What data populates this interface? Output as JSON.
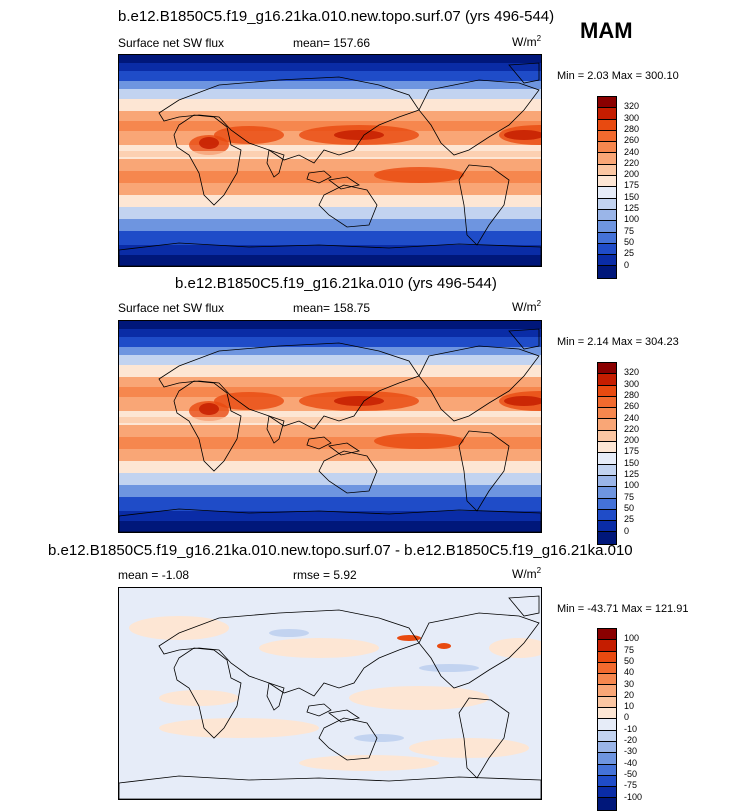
{
  "season": "MAM",
  "panels": [
    {
      "title": "b.e12.B1850C5.f19_g16.21ka.010.new.topo.surf.07 (yrs 496-544)",
      "variable": "Surface net SW flux",
      "stat1": "mean=  157.66",
      "stat2": "",
      "units": "W/m",
      "units_exp": "2",
      "minmax": "Min =   2.03 Max = 300.10",
      "colorbar": {
        "labels": [
          "320",
          "300",
          "280",
          "260",
          "240",
          "220",
          "200",
          "175",
          "150",
          "125",
          "100",
          "75",
          "50",
          "25",
          "0"
        ],
        "colors": [
          "#8a0000",
          "#c51d00",
          "#e84a10",
          "#f26a2e",
          "#f6874e",
          "#f9a676",
          "#fbc6a2",
          "#fde6d4",
          "#e6ecf8",
          "#c2d3f0",
          "#9ab5e8",
          "#6e95e0",
          "#4472d8",
          "#1f4cc8",
          "#0a2ca6",
          "#00177a"
        ]
      },
      "type": "mean"
    },
    {
      "title": "b.e12.B1850C5.f19_g16.21ka.010 (yrs 496-544)",
      "variable": "Surface net SW flux",
      "stat1": "mean=  158.75",
      "stat2": "",
      "units": "W/m",
      "units_exp": "2",
      "minmax": "Min =   2.14 Max = 304.23",
      "colorbar": {
        "labels": [
          "320",
          "300",
          "280",
          "260",
          "240",
          "220",
          "200",
          "175",
          "150",
          "125",
          "100",
          "75",
          "50",
          "25",
          "0"
        ],
        "colors": [
          "#8a0000",
          "#c51d00",
          "#e84a10",
          "#f26a2e",
          "#f6874e",
          "#f9a676",
          "#fbc6a2",
          "#fde6d4",
          "#e6ecf8",
          "#c2d3f0",
          "#9ab5e8",
          "#6e95e0",
          "#4472d8",
          "#1f4cc8",
          "#0a2ca6",
          "#00177a"
        ]
      },
      "type": "mean"
    },
    {
      "title": "b.e12.B1850C5.f19_g16.21ka.010.new.topo.surf.07 - b.e12.B1850C5.f19_g16.21ka.010",
      "variable": "",
      "stat1": "mean =  -1.08",
      "stat2": "rmse =   5.92",
      "units": "W/m",
      "units_exp": "2",
      "minmax": "Min = -43.71 Max = 121.91",
      "colorbar": {
        "labels": [
          "100",
          "75",
          "50",
          "40",
          "30",
          "20",
          "10",
          "0",
          "-10",
          "-20",
          "-30",
          "-40",
          "-50",
          "-75",
          "-100"
        ],
        "colors": [
          "#8a0000",
          "#c51d00",
          "#e84a10",
          "#f26a2e",
          "#f6874e",
          "#f9a676",
          "#fbc6a2",
          "#fde6d4",
          "#e6ecf8",
          "#c2d3f0",
          "#9ab5e8",
          "#6e95e0",
          "#4472d8",
          "#1f4cc8",
          "#0a2ca6",
          "#00177a"
        ]
      },
      "type": "diff"
    }
  ]
}
